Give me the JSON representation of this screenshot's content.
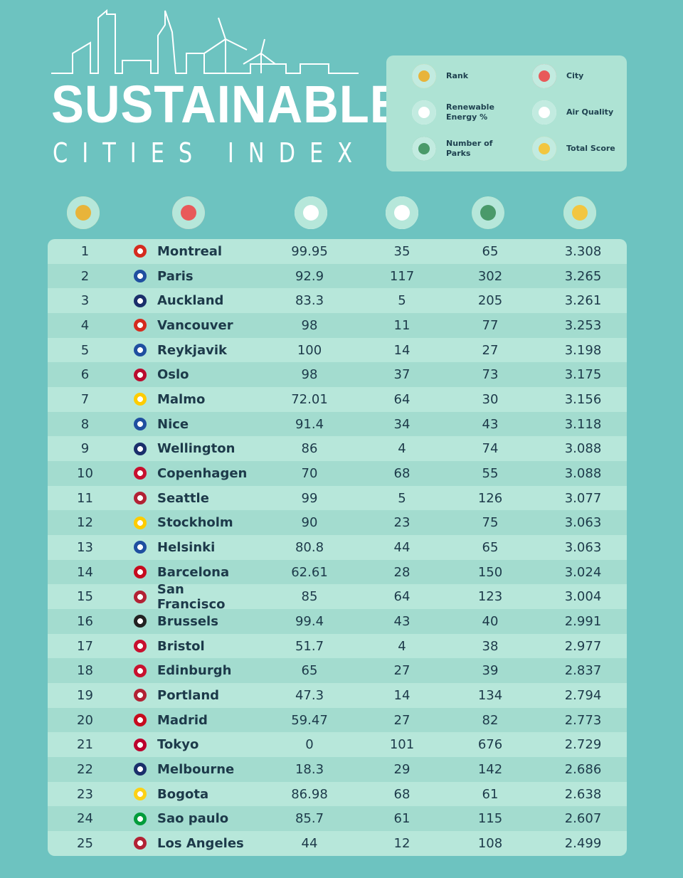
{
  "header": {
    "title": "SUSTAINABLE",
    "subtitle": "CITIES INDEX"
  },
  "legend": [
    {
      "label": "Rank"
    },
    {
      "label": "City"
    },
    {
      "label": "Renewable Energy %"
    },
    {
      "label": "Air Quality"
    },
    {
      "label": "Number of Parks"
    },
    {
      "label": "Total Score"
    }
  ],
  "table": {
    "rows": [
      [
        1,
        "Montreal",
        99.95,
        35,
        65,
        3.308
      ],
      [
        2,
        "Paris",
        92.9,
        117,
        302,
        3.265
      ],
      [
        3,
        "Auckland",
        83.3,
        5,
        205,
        3.261
      ],
      [
        4,
        "Vancouver",
        98,
        11,
        77,
        3.253
      ],
      [
        5,
        "Reykjavik",
        100,
        14,
        27,
        3.198
      ],
      [
        6,
        "Oslo",
        98,
        37,
        73,
        3.175
      ],
      [
        7,
        "Malmo",
        72.01,
        64,
        30,
        3.156
      ],
      [
        8,
        "Nice",
        91.4,
        34,
        43,
        3.118
      ],
      [
        9,
        "Wellington",
        86,
        4,
        74,
        3.088
      ],
      [
        10,
        "Copenhagen",
        70,
        68,
        55,
        3.088
      ],
      [
        11,
        "Seattle",
        99,
        5,
        126,
        3.077
      ],
      [
        12,
        "Stockholm",
        90,
        23,
        75,
        3.063
      ],
      [
        13,
        "Helsinki",
        80.8,
        44,
        65,
        3.063
      ],
      [
        14,
        "Barcelona",
        62.61,
        28,
        150,
        3.024
      ],
      [
        15,
        "San Francisco",
        85,
        64,
        123,
        3.004
      ],
      [
        16,
        "Brussels",
        99.4,
        43,
        40,
        2.991
      ],
      [
        17,
        "Bristol",
        51.7,
        4,
        38,
        2.977
      ],
      [
        18,
        "Edinburgh",
        65,
        27,
        39,
        2.837
      ],
      [
        19,
        "Portland",
        47.3,
        14,
        134,
        2.794
      ],
      [
        20,
        "Madrid",
        59.47,
        27,
        82,
        2.773
      ],
      [
        21,
        "Tokyo",
        0,
        101,
        676,
        2.729
      ],
      [
        22,
        "Melbourne",
        18.3,
        29,
        142,
        2.686
      ],
      [
        23,
        "Bogota",
        86.98,
        68,
        61,
        2.638
      ],
      [
        24,
        "Sao paulo",
        85.7,
        61,
        115,
        2.607
      ],
      [
        25,
        "Los Angeles",
        44,
        12,
        108,
        2.499
      ]
    ]
  }
}
